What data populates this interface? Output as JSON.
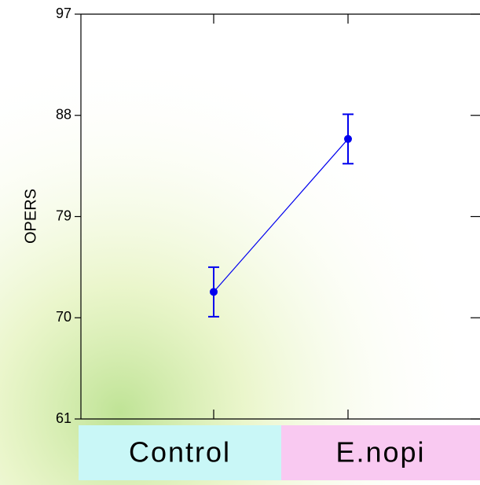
{
  "chart_data": {
    "type": "line",
    "ylabel": "OPERS",
    "categories": [
      "Control",
      "E.nopi"
    ],
    "values": [
      72.3,
      85.9
    ],
    "errors": [
      2.2,
      2.2
    ],
    "color": "#0000ee",
    "category_colors": [
      "#c9f7f7",
      "#f9c9f1"
    ],
    "ylim": [
      61,
      97
    ],
    "yticks": [
      61,
      70,
      79,
      88,
      97
    ]
  }
}
